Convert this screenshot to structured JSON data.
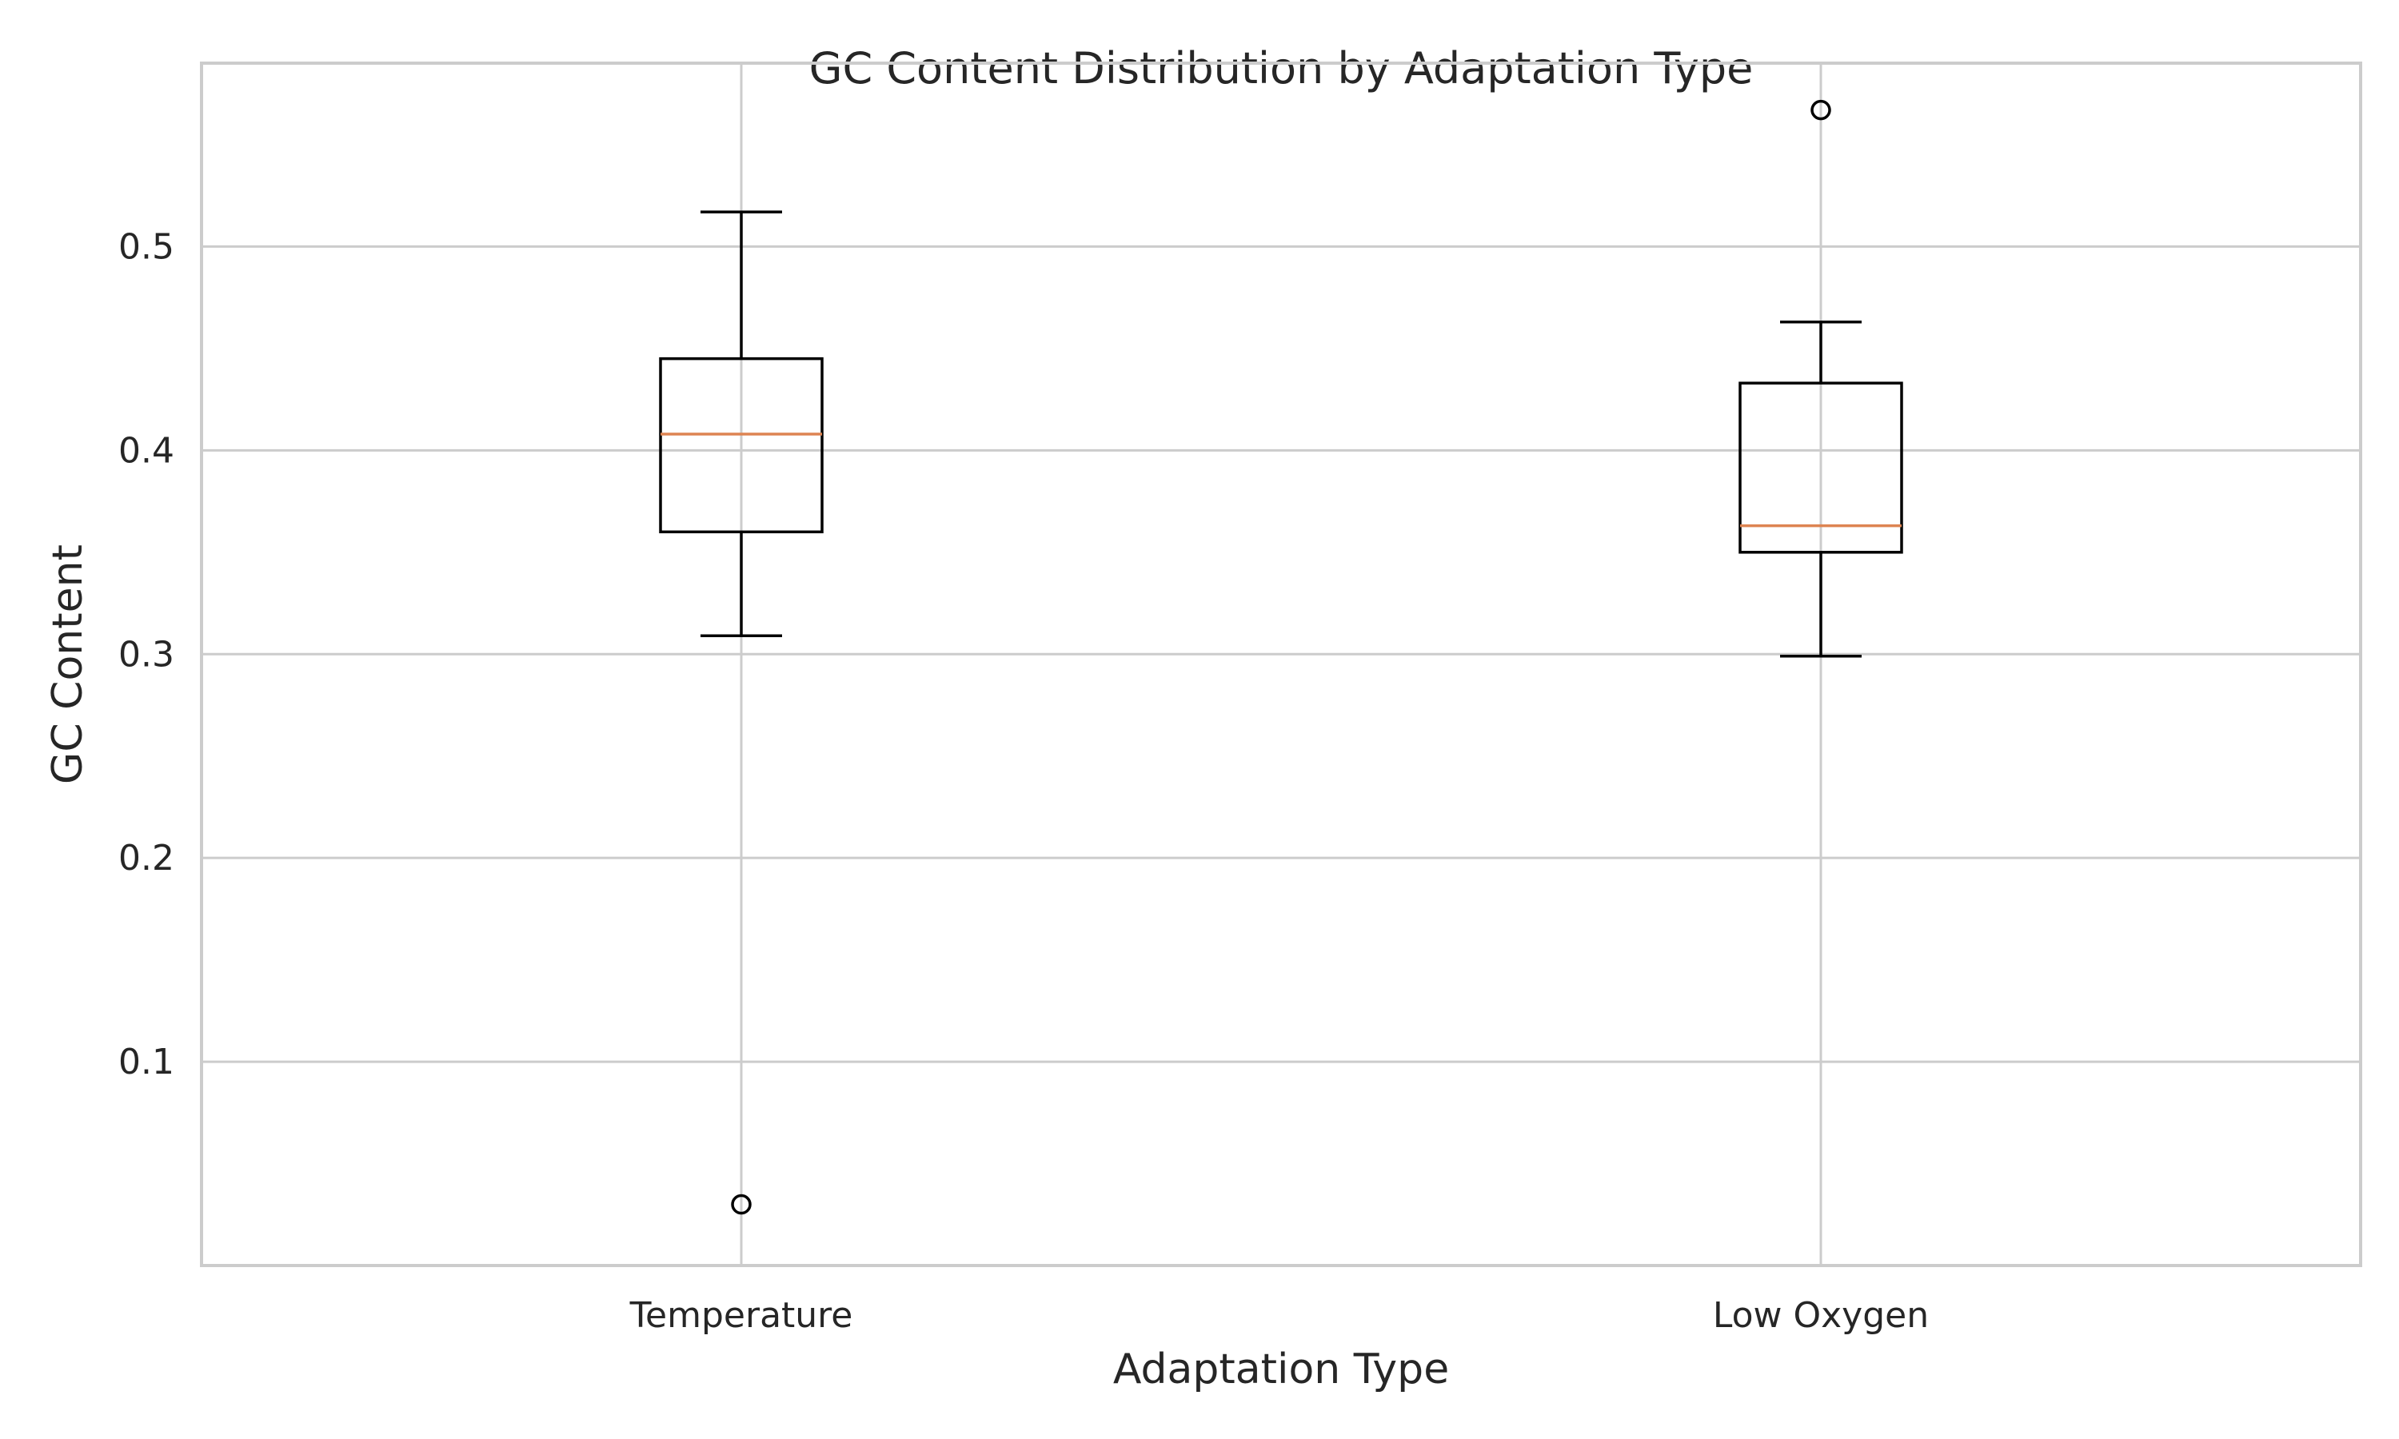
{
  "chart_data": {
    "type": "box",
    "title": "GC Content Distribution by Adaptation Type",
    "xlabel": "Adaptation Type",
    "ylabel": "GC Content",
    "ylim": [
      0.0,
      0.59
    ],
    "yticks": [
      0.1,
      0.2,
      0.3,
      0.4,
      0.5
    ],
    "ytick_labels": [
      "0.1",
      "0.2",
      "0.3",
      "0.4",
      "0.5"
    ],
    "grid": true,
    "legend": "none",
    "colors": {
      "median": "#dd8452",
      "box": "#000000",
      "grid": "#cccccc"
    },
    "categories": [
      "Temperature",
      "Low Oxygen"
    ],
    "boxes": [
      {
        "category": "Temperature",
        "whisker_low": 0.309,
        "q1": 0.36,
        "median": 0.408,
        "q3": 0.445,
        "whisker_high": 0.517,
        "outliers": [
          0.03
        ]
      },
      {
        "category": "Low Oxygen",
        "whisker_low": 0.299,
        "q1": 0.35,
        "median": 0.363,
        "q3": 0.433,
        "whisker_high": 0.463,
        "outliers": [
          0.567
        ]
      }
    ]
  }
}
